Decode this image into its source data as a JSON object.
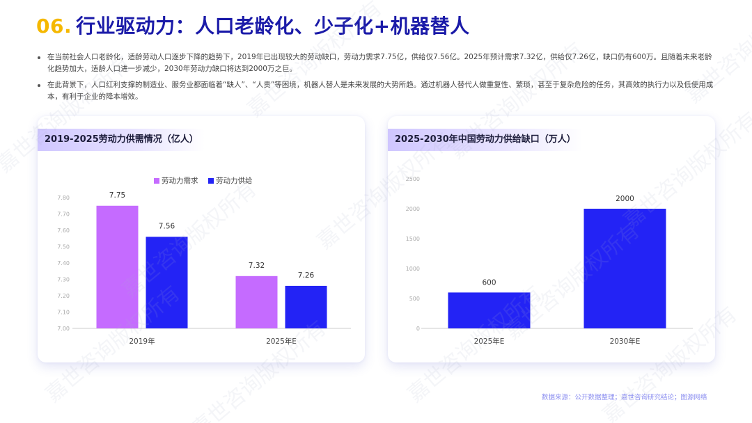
{
  "header": {
    "number": "06.",
    "title": "行业驱动力：人口老龄化、少子化+机器替人"
  },
  "bullets": [
    "在当前社会人口老龄化，适龄劳动人口逐步下降的趋势下，2019年已出现较大的劳动缺口，劳动力需求7.75亿，供给仅7.56亿。2025年预计需求7.32亿，供给仅7.26亿，缺口仍有600万。且随着未来老龄化趋势加大，适龄人口进一步减少，2030年劳动力缺口将达到2000万之巨。",
    "在此背景下，人口红利支撑的制造业、服务业都面临着“缺人”、“人贵”等困境，机器人替人是未来发展的大势所趋。通过机器人替代人做重复性、繁琐，甚至于复杂危险的任务，其高效的执行力以及低使用成本，有利于企业的降本增效。"
  ],
  "watermark": "嘉世咨询版权所有",
  "footer": "数据来源：公开数据整理；嘉世咨询研究结论；图源网络",
  "colors": {
    "demand": "#c56bff",
    "supply": "#2323f5",
    "gap": "#2323f5"
  },
  "chart_data": [
    {
      "type": "bar",
      "title": "2019-2025劳动力供需情况（亿人）",
      "categories": [
        "2019年",
        "2025年E"
      ],
      "series": [
        {
          "name": "劳动力需求",
          "values": [
            7.75,
            7.32
          ]
        },
        {
          "name": "劳动力供给",
          "values": [
            7.56,
            7.26
          ]
        }
      ],
      "value_labels": [
        [
          "7.75",
          "7.32"
        ],
        [
          "7.56",
          "7.26"
        ]
      ],
      "ylim": [
        7.0,
        7.8
      ],
      "yticks": [
        "7.00",
        "7.10",
        "7.20",
        "7.30",
        "7.40",
        "7.50",
        "7.60",
        "7.70",
        "7.80"
      ],
      "legend": "top-center",
      "grid": false
    },
    {
      "type": "bar",
      "title": "2025-2030年中国劳动力供给缺口（万人）",
      "categories": [
        "2025年E",
        "2030年E"
      ],
      "values": [
        600,
        2000
      ],
      "value_labels": [
        "600",
        "2000"
      ],
      "ylim": [
        0,
        2500
      ],
      "yticks": [
        "0",
        "500",
        "1000",
        "1500",
        "2000",
        "2500"
      ],
      "grid": false
    }
  ]
}
